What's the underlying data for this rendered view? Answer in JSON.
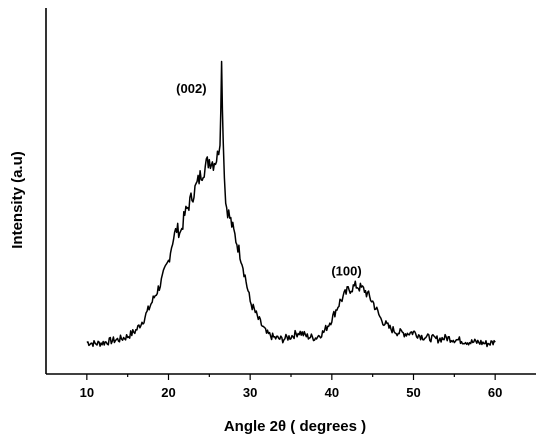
{
  "chart_data": {
    "type": "line",
    "title": "",
    "xlabel": "Angle 2θ ( degrees )",
    "ylabel": "Intensity (a.u)",
    "xlim": [
      5,
      65
    ],
    "ylim": [
      0,
      1
    ],
    "x_ticks": [
      "10",
      "20",
      "30",
      "40",
      "50",
      "60"
    ],
    "y_ticks": [],
    "grid": false,
    "legend": "none",
    "line_color": "#000000",
    "annotations": [
      {
        "text": "(002)",
        "x": 22.8,
        "y": 0.88
      },
      {
        "text": "(100)",
        "x": 41.8,
        "y": 0.25
      }
    ],
    "series": [
      {
        "x": [
          10,
          11,
          12,
          13,
          14,
          15,
          16,
          17,
          18,
          19,
          20,
          20.5,
          21,
          21.5,
          22,
          23,
          24,
          25,
          25.5,
          26,
          26.3,
          26.5,
          26.7,
          27,
          27.5,
          28,
          29,
          30,
          31,
          32,
          33,
          34,
          35,
          36,
          37,
          38,
          39,
          40,
          41,
          42,
          43,
          44,
          45,
          46,
          47,
          48,
          49,
          50,
          51,
          52,
          53,
          54,
          55,
          56,
          57,
          58,
          59,
          60
        ],
        "y": [
          0.02,
          0.015,
          0.018,
          0.025,
          0.03,
          0.04,
          0.06,
          0.1,
          0.16,
          0.22,
          0.3,
          0.37,
          0.41,
          0.4,
          0.46,
          0.53,
          0.6,
          0.65,
          0.64,
          0.66,
          0.72,
          0.98,
          0.72,
          0.5,
          0.45,
          0.4,
          0.3,
          0.16,
          0.1,
          0.05,
          0.035,
          0.03,
          0.04,
          0.055,
          0.04,
          0.035,
          0.055,
          0.1,
          0.16,
          0.2,
          0.215,
          0.2,
          0.16,
          0.1,
          0.07,
          0.055,
          0.05,
          0.055,
          0.04,
          0.035,
          0.03,
          0.035,
          0.03,
          0.025,
          0.02,
          0.02,
          0.015,
          0.02
        ]
      }
    ]
  }
}
